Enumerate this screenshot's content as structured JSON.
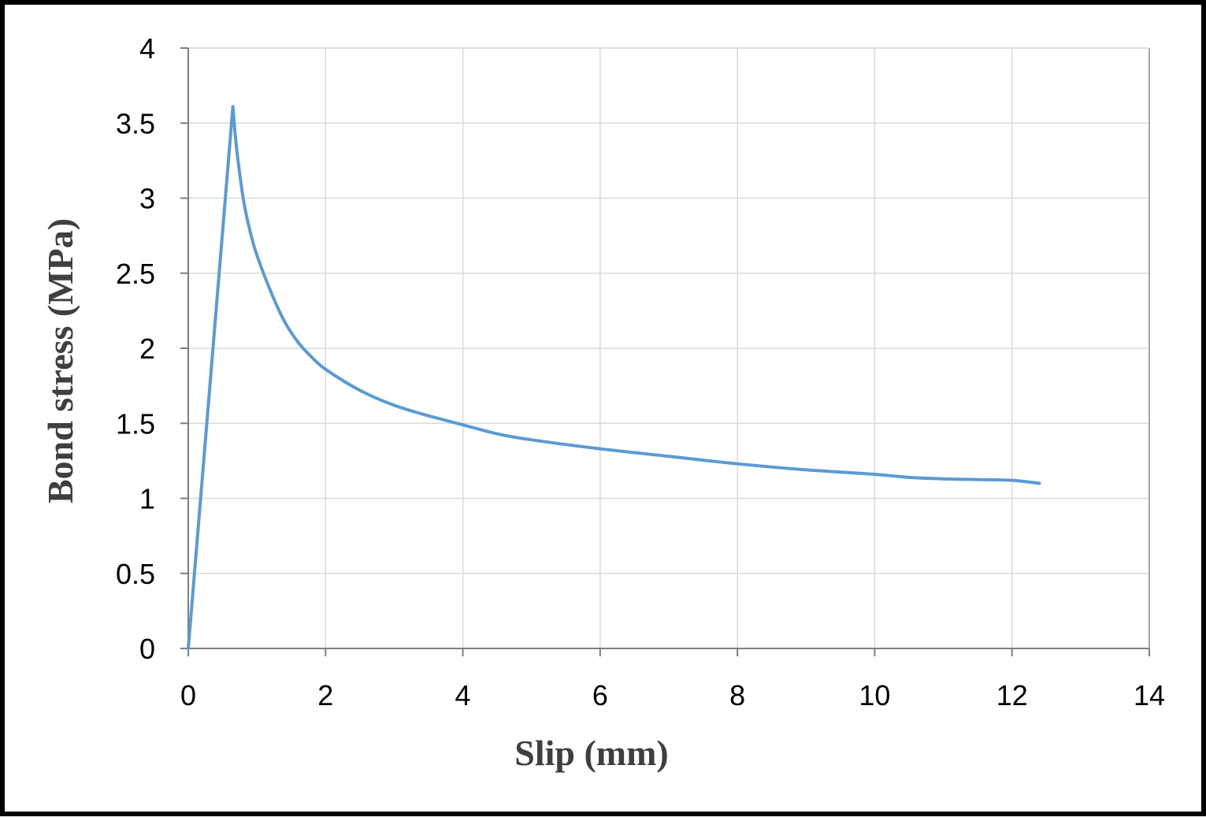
{
  "chart_data": {
    "type": "line",
    "title": "",
    "xlabel": "Slip (mm)",
    "ylabel": "Bond stress (MPa)",
    "xlim": [
      0,
      14
    ],
    "ylim": [
      0,
      4
    ],
    "xticks": [
      0,
      2,
      4,
      6,
      8,
      10,
      12,
      14
    ],
    "xtick_labels": [
      "0",
      "2",
      "4",
      "6",
      "8",
      "10",
      "12",
      "14"
    ],
    "yticks": [
      0,
      0.5,
      1,
      1.5,
      2,
      2.5,
      3,
      3.5,
      4
    ],
    "ytick_labels": [
      "0",
      "0.5",
      "1",
      "1.5",
      "2",
      "2.5",
      "3",
      "3.5",
      "4"
    ],
    "grid": true,
    "legend": "none",
    "series": [
      {
        "color": "#5b9bd5",
        "x": [
          0,
          0.65,
          0.7,
          0.8,
          0.9,
          1.0,
          1.2,
          1.4,
          1.6,
          1.8,
          2.0,
          2.5,
          3.0,
          3.5,
          4.0,
          4.5,
          5.0,
          6.0,
          7.0,
          8.0,
          9.0,
          10.0,
          10.5,
          11.0,
          11.5,
          12.0,
          12.4
        ],
        "y": [
          0,
          3.61,
          3.35,
          3.0,
          2.78,
          2.62,
          2.38,
          2.18,
          2.04,
          1.94,
          1.86,
          1.72,
          1.62,
          1.55,
          1.49,
          1.43,
          1.39,
          1.33,
          1.28,
          1.23,
          1.19,
          1.16,
          1.14,
          1.13,
          1.125,
          1.12,
          1.1
        ]
      }
    ]
  }
}
